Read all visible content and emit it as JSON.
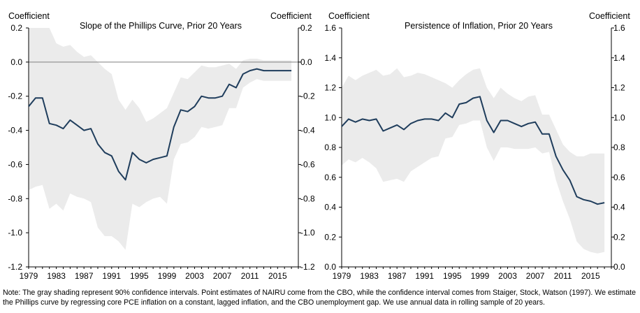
{
  "chart_data": [
    {
      "type": "line",
      "title": "Slope of the Phillips Curve,  Prior 20 Years",
      "ylabel_left": "Coefficient",
      "ylabel_right": "Coefficient",
      "xlim": [
        1979,
        2018
      ],
      "ylim": [
        -1.2,
        0.2
      ],
      "yticks": [
        0.2,
        0.0,
        -0.2,
        -0.4,
        -0.6,
        -0.8,
        -1.0,
        -1.2
      ],
      "yticklabels": [
        "0.2",
        "0.0",
        "-0.2",
        "-0.4",
        "-0.6",
        "-0.8",
        "-1.0",
        "-1.2"
      ],
      "xticks": [
        1979,
        1983,
        1987,
        1991,
        1995,
        1999,
        2003,
        2007,
        2011,
        2015
      ],
      "xticklabels": [
        "1979",
        "1983",
        "1987",
        "1991",
        "1995",
        "1999",
        "2003",
        "2007",
        "2011",
        "2015"
      ],
      "zero_line": 0.0,
      "x": [
        1979,
        1980,
        1981,
        1982,
        1983,
        1984,
        1985,
        1986,
        1987,
        1988,
        1989,
        1990,
        1991,
        1992,
        1993,
        1994,
        1995,
        1996,
        1997,
        1998,
        1999,
        2000,
        2001,
        2002,
        2003,
        2004,
        2005,
        2006,
        2007,
        2008,
        2009,
        2010,
        2011,
        2012,
        2013,
        2014,
        2015,
        2016,
        2017
      ],
      "series": [
        {
          "name": "Point estimate",
          "color": "#1f3d5c",
          "values": [
            -0.26,
            -0.21,
            -0.21,
            -0.36,
            -0.37,
            -0.39,
            -0.34,
            -0.37,
            -0.4,
            -0.39,
            -0.48,
            -0.53,
            -0.55,
            -0.64,
            -0.69,
            -0.53,
            -0.57,
            -0.59,
            -0.57,
            -0.56,
            -0.55,
            -0.38,
            -0.28,
            -0.29,
            -0.26,
            -0.2,
            -0.21,
            -0.21,
            -0.2,
            -0.13,
            -0.15,
            -0.07,
            -0.05,
            -0.04,
            -0.05,
            -0.05,
            -0.05,
            -0.05,
            -0.05
          ]
        }
      ],
      "band": {
        "name": "90% confidence interval",
        "color": "#ebebeb",
        "upper": [
          0.23,
          0.24,
          0.22,
          0.2,
          0.11,
          0.09,
          0.1,
          0.06,
          0.03,
          0.04,
          0.0,
          -0.04,
          -0.07,
          -0.22,
          -0.28,
          -0.22,
          -0.27,
          -0.35,
          -0.33,
          -0.3,
          -0.27,
          -0.18,
          -0.09,
          -0.1,
          -0.06,
          -0.02,
          -0.03,
          -0.03,
          -0.02,
          -0.01,
          -0.04,
          0.01,
          0.02,
          0.02,
          0.01,
          0.01,
          0.01,
          0.01,
          0.01
        ],
        "lower": [
          -0.75,
          -0.73,
          -0.72,
          -0.86,
          -0.83,
          -0.87,
          -0.77,
          -0.79,
          -0.8,
          -0.82,
          -0.97,
          -1.02,
          -1.02,
          -1.05,
          -1.1,
          -0.83,
          -0.85,
          -0.82,
          -0.8,
          -0.79,
          -0.83,
          -0.57,
          -0.48,
          -0.47,
          -0.44,
          -0.38,
          -0.39,
          -0.38,
          -0.37,
          -0.27,
          -0.27,
          -0.15,
          -0.12,
          -0.1,
          -0.11,
          -0.11,
          -0.11,
          -0.11,
          -0.11
        ]
      }
    },
    {
      "type": "line",
      "title": "Persistence of Inflation,  Prior 20 Years",
      "ylabel_left": "Coefficient",
      "ylabel_right": "Coefficient",
      "xlim": [
        1979,
        2018
      ],
      "ylim": [
        0.0,
        1.6
      ],
      "yticks": [
        1.6,
        1.4,
        1.2,
        1.0,
        0.8,
        0.6,
        0.4,
        0.2,
        0.0
      ],
      "yticklabels": [
        "1.6",
        "1.4",
        "1.2",
        "1.0",
        "0.8",
        "0.6",
        "0.4",
        "0.2",
        "0.0"
      ],
      "xticks": [
        1979,
        1983,
        1987,
        1991,
        1995,
        1999,
        2003,
        2007,
        2011,
        2015
      ],
      "xticklabels": [
        "1979",
        "1983",
        "1987",
        "1991",
        "1995",
        "1999",
        "2003",
        "2007",
        "2011",
        "2015"
      ],
      "zero_line": null,
      "x": [
        1979,
        1980,
        1981,
        1982,
        1983,
        1984,
        1985,
        1986,
        1987,
        1988,
        1989,
        1990,
        1991,
        1992,
        1993,
        1994,
        1995,
        1996,
        1997,
        1998,
        1999,
        2000,
        2001,
        2002,
        2003,
        2004,
        2005,
        2006,
        2007,
        2008,
        2009,
        2010,
        2011,
        2012,
        2013,
        2014,
        2015,
        2016,
        2017
      ],
      "series": [
        {
          "name": "Point estimate",
          "color": "#1f3d5c",
          "values": [
            0.94,
            0.99,
            0.97,
            0.99,
            0.98,
            0.99,
            0.91,
            0.93,
            0.95,
            0.92,
            0.96,
            0.98,
            0.99,
            0.99,
            0.98,
            1.03,
            1.0,
            1.09,
            1.1,
            1.13,
            1.14,
            0.98,
            0.9,
            0.98,
            0.98,
            0.96,
            0.94,
            0.96,
            0.97,
            0.89,
            0.89,
            0.74,
            0.65,
            0.58,
            0.47,
            0.45,
            0.44,
            0.42,
            0.43
          ]
        }
      ],
      "band": {
        "name": "90% confidence interval",
        "color": "#ebebeb",
        "upper": [
          1.2,
          1.28,
          1.25,
          1.28,
          1.3,
          1.32,
          1.28,
          1.29,
          1.33,
          1.27,
          1.28,
          1.3,
          1.29,
          1.27,
          1.25,
          1.23,
          1.2,
          1.25,
          1.29,
          1.32,
          1.33,
          1.2,
          1.13,
          1.2,
          1.16,
          1.13,
          1.11,
          1.14,
          1.15,
          1.02,
          1.02,
          0.92,
          0.82,
          0.77,
          0.74,
          0.74,
          0.76,
          0.76,
          0.76
        ],
        "lower": [
          0.68,
          0.72,
          0.7,
          0.73,
          0.7,
          0.66,
          0.57,
          0.58,
          0.59,
          0.57,
          0.64,
          0.67,
          0.7,
          0.73,
          0.74,
          0.86,
          0.87,
          0.95,
          0.96,
          0.98,
          0.98,
          0.8,
          0.71,
          0.8,
          0.8,
          0.79,
          0.79,
          0.79,
          0.8,
          0.76,
          0.77,
          0.58,
          0.44,
          0.32,
          0.17,
          0.12,
          0.1,
          0.09,
          0.1
        ]
      }
    }
  ],
  "note": "Note: The gray shading represent 90% confidence intervals. Point estimates of NAIRU come from the CBO, while the confidence interval comes from Staiger, Stock, Watson (1997). We estimate the Phillips curve by regressing core PCE inflation on a constant, lagged inflation, and the CBO unemployment gap.  We use annual data in rolling sample of 20 years."
}
